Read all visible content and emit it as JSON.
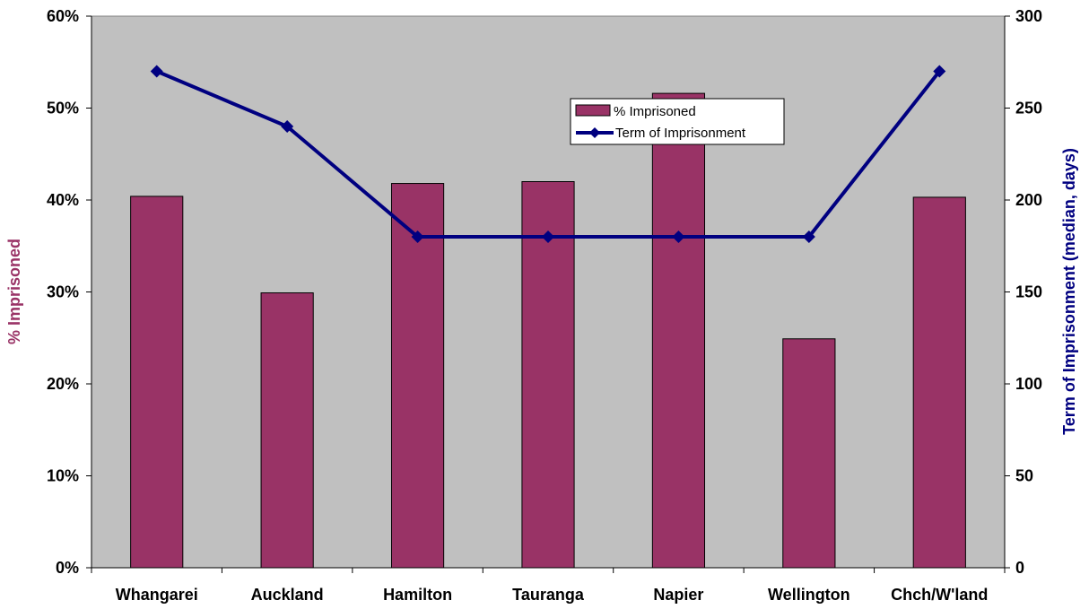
{
  "chart_data": {
    "type": "bar",
    "categories": [
      "Whangarei",
      "Auckland",
      "Hamilton",
      "Tauranga",
      "Napier",
      "Wellington",
      "Chch/W'land"
    ],
    "series": [
      {
        "name": "% Imprisoned",
        "type": "bar",
        "axis": "left",
        "values": [
          40.4,
          29.9,
          41.8,
          42.0,
          51.6,
          24.9,
          40.3
        ],
        "color": "#993366"
      },
      {
        "name": "Term of Imprisonment",
        "type": "line",
        "axis": "right",
        "marker": "diamond",
        "values": [
          270,
          240,
          180,
          180,
          180,
          180,
          270
        ],
        "color": "#000080"
      }
    ],
    "ylabel": "% Imprisoned",
    "ylabel_color": "#993366",
    "ylim": [
      0,
      60
    ],
    "yticks": [
      "0%",
      "10%",
      "20%",
      "30%",
      "40%",
      "50%",
      "60%"
    ],
    "y2label": "Term of Imprisonment (median, days)",
    "y2label_color": "#000080",
    "y2lim": [
      0,
      300
    ],
    "y2ticks": [
      "0",
      "50",
      "100",
      "150",
      "200",
      "250",
      "300"
    ],
    "plot_background": "#c0c0c0",
    "grid": false,
    "legend": {
      "position": "top-center-right",
      "entries": [
        "% Imprisoned",
        "Term of Imprisonment"
      ]
    }
  }
}
